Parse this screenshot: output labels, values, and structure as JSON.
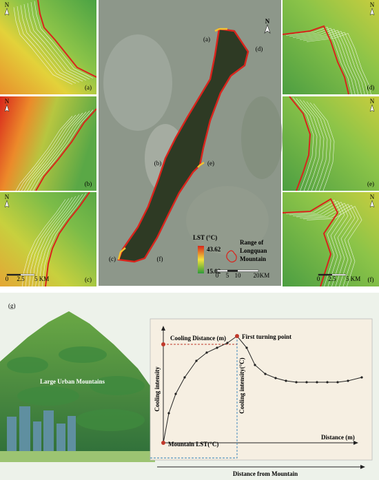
{
  "maps": {
    "panels": [
      "(a)",
      "(b)",
      "(c)",
      "(d)",
      "(e)",
      "(f)"
    ],
    "north": "N",
    "small_scale": [
      "0",
      "2.5",
      "5 KM"
    ]
  },
  "center": {
    "site_labels": [
      "(a)",
      "(d)",
      "(b)",
      "(e)",
      "(c)",
      "(f)"
    ],
    "legend": {
      "title": "LST (°C)",
      "max": 43.62,
      "min": 15.02,
      "range_label": [
        "Range of",
        "Longquan",
        "Mountain"
      ]
    },
    "scale": [
      "0",
      "5",
      "10",
      "20",
      "KM"
    ]
  },
  "concept": {
    "label": "(g)",
    "mountain_label": "Large Urban Mountains",
    "cooling_distance": "Cooling Distance (m)",
    "turning_point": "First turning point",
    "y_label": "Cooling intensity",
    "y2_label": "Cooling intensity(°C)",
    "origin_label": "Mountain LST(°C)",
    "x_label": "Distance (m)",
    "bottom_label": "Distance  from Mountain"
  }
}
